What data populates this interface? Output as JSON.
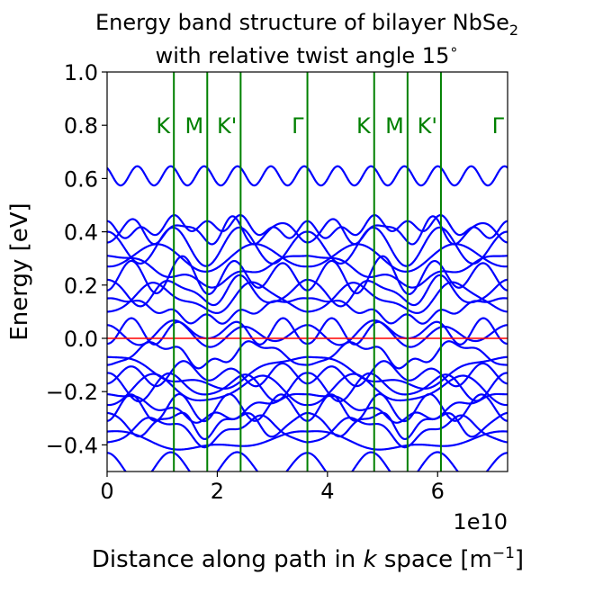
{
  "chart_data": {
    "type": "line",
    "title_line1": "Energy band structure of bilayer NbSe",
    "title_subscript": "2",
    "title_line2": "with relative twist angle 15",
    "title_degree": "∘",
    "xlabel_prefix": "Distance along path in ",
    "xlabel_k": "k",
    "xlabel_mid": " space [m",
    "xlabel_sup": "−1",
    "xlabel_suffix": "]",
    "ylabel": "Energy [eV]",
    "x_offset_label": "1e10",
    "xlim": [
      0,
      7.27
    ],
    "ylim": [
      -0.5,
      1.0
    ],
    "x_ticks": [
      0,
      2,
      4,
      6
    ],
    "x_tick_labels": [
      "0",
      "2",
      "4",
      "6"
    ],
    "y_ticks": [
      1.0,
      0.8,
      0.6,
      0.4,
      0.2,
      0.0,
      -0.2,
      -0.4
    ],
    "y_tick_labels": [
      "1.0",
      "0.8",
      "0.6",
      "0.4",
      "0.2",
      "0.0",
      "−0.2",
      "−0.4"
    ],
    "grid": false,
    "fermi_level": 0.0,
    "fermi_color": "#ff0000",
    "band_color": "#0000ff",
    "kpoint_color": "#008000",
    "high_symmetry_points": [
      {
        "label": "K",
        "x": 1.212
      },
      {
        "label": "M",
        "x": 1.818
      },
      {
        "label": "K'",
        "x": 2.424
      },
      {
        "label": "Γ",
        "x": 3.636
      },
      {
        "label": "K",
        "x": 4.848
      },
      {
        "label": "M",
        "x": 5.454
      },
      {
        "label": "K'",
        "x": 6.06
      },
      {
        "label": "Γ",
        "x": 7.27
      }
    ],
    "bands_at_gamma": [
      0.64,
      0.44,
      0.4,
      0.36,
      0.31,
      0.27,
      0.22,
      0.18,
      0.15,
      0.1,
      0.05,
      -0.02,
      -0.07,
      -0.1,
      -0.13,
      -0.17,
      -0.21,
      -0.25,
      -0.28,
      -0.31,
      -0.35,
      -0.39,
      -0.43
    ]
  }
}
